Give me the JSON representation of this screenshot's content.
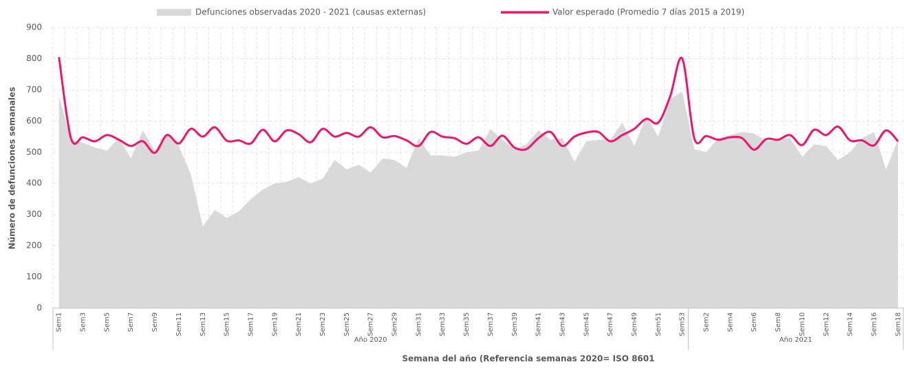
{
  "chart_data": {
    "type": "line",
    "ylabel": "Número de defunciones semanales",
    "xlabel": "Semana del año (Referencia semanas 2020= ISO 8601",
    "groups": [
      {
        "label": "Año 2020",
        "categories": [
          "Sem1",
          null,
          "Sem3",
          null,
          "Sem5",
          null,
          "Sem7",
          null,
          "Sem9",
          null,
          "Sem11",
          null,
          "Sem13",
          null,
          "Sem15",
          null,
          "Sem17",
          null,
          "Sem19",
          null,
          "Sem21",
          null,
          "Sem23",
          null,
          "Sem25",
          null,
          "Sem27",
          null,
          "Sem29",
          null,
          "Sem31",
          null,
          "Sem33",
          null,
          "Sem35",
          null,
          "Sem37",
          null,
          "Sem39",
          null,
          "Sem41",
          null,
          "Sem43",
          null,
          "Sem45",
          null,
          "Sem47",
          null,
          "Sem49",
          null,
          "Sem51",
          null,
          "Sem53"
        ]
      },
      {
        "label": "Año 2021",
        "categories": [
          null,
          "Sem2",
          null,
          "Sem4",
          null,
          "Sem6",
          null,
          "Sem8",
          null,
          "Sem10",
          null,
          "Sem12",
          null,
          "Sem14",
          null,
          "Sem16",
          null,
          "Sem18"
        ]
      }
    ],
    "series": [
      {
        "name": "Defunciones observadas 2020 - 2021 (causas externas)",
        "type": "area",
        "color": "#d9d9d9",
        "values": [
          680,
          540,
          530,
          515,
          505,
          545,
          480,
          570,
          505,
          560,
          520,
          430,
          262,
          315,
          290,
          310,
          350,
          380,
          400,
          405,
          420,
          400,
          415,
          475,
          445,
          460,
          435,
          480,
          475,
          450,
          545,
          490,
          490,
          485,
          500,
          505,
          575,
          540,
          510,
          525,
          570,
          540,
          545,
          470,
          535,
          540,
          540,
          595,
          520,
          615,
          550,
          670,
          695,
          510,
          500,
          545,
          555,
          565,
          560,
          535,
          540,
          545,
          485,
          525,
          520,
          475,
          500,
          545,
          565,
          445,
          540
        ]
      },
      {
        "name": "Valor esperado (Promedio 7 días 2015 a 2019)",
        "type": "line",
        "color": "#f0146c",
        "values": [
          805,
          545,
          548,
          535,
          555,
          540,
          520,
          535,
          498,
          555,
          528,
          575,
          550,
          580,
          537,
          538,
          528,
          572,
          535,
          570,
          558,
          532,
          575,
          550,
          562,
          550,
          580,
          548,
          552,
          538,
          520,
          565,
          550,
          545,
          527,
          548,
          520,
          553,
          515,
          510,
          545,
          565,
          520,
          550,
          563,
          565,
          535,
          555,
          575,
          607,
          595,
          680,
          800,
          545,
          552,
          540,
          548,
          545,
          508,
          542,
          540,
          555,
          523,
          572,
          555,
          582,
          538,
          538,
          522,
          570,
          535
        ]
      }
    ],
    "ylim": [
      0,
      900
    ],
    "yticks": [
      0,
      100,
      200,
      300,
      400,
      500,
      600,
      700,
      800,
      900
    ],
    "grid": true
  }
}
